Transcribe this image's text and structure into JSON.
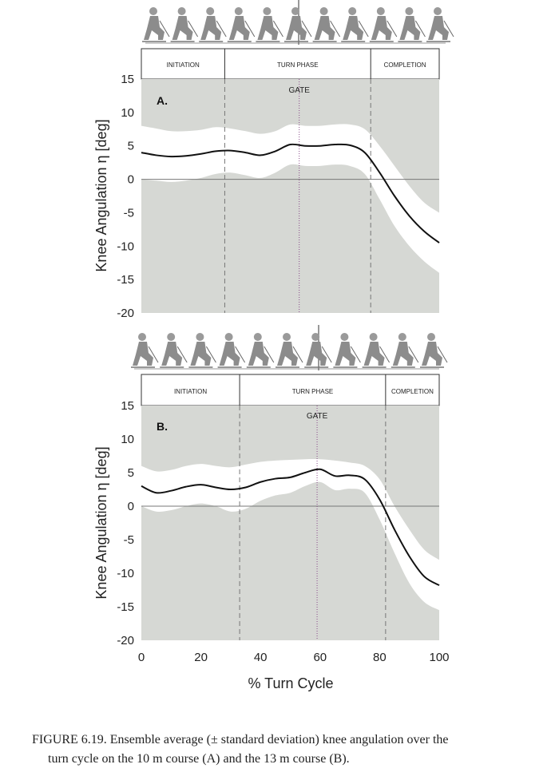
{
  "caption": {
    "line1": "FIGURE 6.19.  Ensemble average (± standard deviation) knee angulation over the",
    "line2": "turn cycle on the 10 m course (A) and the 13 m course (B)."
  },
  "colors": {
    "band_bg": "#d6d8d4",
    "sd_band": "#ffffff",
    "mean_line": "#111111",
    "axis_text": "#222222"
  },
  "chart_data": [
    {
      "type": "line",
      "panel_label": "A.",
      "ylabel": "Knee Angulation η [deg]",
      "ylim": [
        -20,
        15
      ],
      "yticks": [
        15,
        10,
        5,
        0,
        -5,
        -10,
        -15,
        -20
      ],
      "xlim": [
        0,
        100
      ],
      "phases": [
        {
          "label": "INITIATION",
          "start": 0,
          "end": 28
        },
        {
          "label": "TURN PHASE",
          "start": 28,
          "end": 77
        },
        {
          "label": "COMPLETION",
          "start": 77,
          "end": 100
        }
      ],
      "gate_label": "GATE",
      "gate_x": 53,
      "series": [
        {
          "name": "mean knee angulation",
          "x": [
            0,
            5,
            10,
            15,
            20,
            25,
            30,
            35,
            40,
            45,
            50,
            55,
            60,
            65,
            70,
            75,
            80,
            85,
            90,
            95,
            100
          ],
          "mean": [
            4,
            3.6,
            3.4,
            3.5,
            3.8,
            4.2,
            4.3,
            4,
            3.6,
            4.2,
            5.2,
            5,
            5,
            5.2,
            5.1,
            4,
            1,
            -2.5,
            -5.5,
            -7.8,
            -9.5
          ],
          "upper": [
            8,
            7.6,
            7.2,
            7.2,
            7.4,
            7.8,
            7.6,
            7.2,
            6.8,
            7.2,
            8.2,
            8,
            8,
            8.2,
            8.2,
            7.5,
            5,
            2,
            -1,
            -3.5,
            -5
          ],
          "lower": [
            0,
            -0.2,
            -0.4,
            -0.2,
            0.2,
            0.8,
            1,
            0.6,
            0.2,
            1,
            2.2,
            2,
            2,
            2.2,
            2,
            0.8,
            -3,
            -7,
            -10,
            -12.3,
            -14
          ]
        }
      ]
    },
    {
      "type": "line",
      "panel_label": "B.",
      "ylabel": "Knee Angulation η [deg]",
      "xlabel": "% Turn Cycle",
      "ylim": [
        -20,
        15
      ],
      "yticks": [
        15,
        10,
        5,
        0,
        -5,
        -10,
        -15,
        -20
      ],
      "xlim": [
        0,
        100
      ],
      "xticks": [
        0,
        20,
        40,
        60,
        80,
        100
      ],
      "phases": [
        {
          "label": "INITIATION",
          "start": 0,
          "end": 33
        },
        {
          "label": "TURN PHASE",
          "start": 33,
          "end": 82
        },
        {
          "label": "COMPLETION",
          "start": 82,
          "end": 100
        }
      ],
      "gate_label": "GATE",
      "gate_x": 59,
      "series": [
        {
          "name": "mean knee angulation",
          "x": [
            0,
            5,
            10,
            15,
            20,
            25,
            30,
            35,
            40,
            45,
            50,
            55,
            60,
            65,
            70,
            75,
            80,
            85,
            90,
            95,
            100
          ],
          "mean": [
            3,
            2,
            2.3,
            2.9,
            3.2,
            2.8,
            2.5,
            2.8,
            3.6,
            4.1,
            4.3,
            5,
            5.5,
            4.5,
            4.6,
            4,
            1,
            -3.5,
            -7.5,
            -10.5,
            -11.8
          ],
          "upper": [
            6,
            5.2,
            5.4,
            6,
            6.3,
            6,
            5.8,
            6.2,
            6.6,
            6.8,
            6.9,
            7,
            7,
            6.8,
            6.5,
            6,
            4,
            0,
            -3.5,
            -6.5,
            -8
          ],
          "lower": [
            0,
            -0.8,
            -0.6,
            0,
            0.4,
            0,
            -0.8,
            -0.4,
            0.8,
            1.6,
            2,
            3,
            3.6,
            2.4,
            2.6,
            2,
            -2,
            -7,
            -11.5,
            -14.3,
            -15.5
          ]
        }
      ]
    }
  ]
}
